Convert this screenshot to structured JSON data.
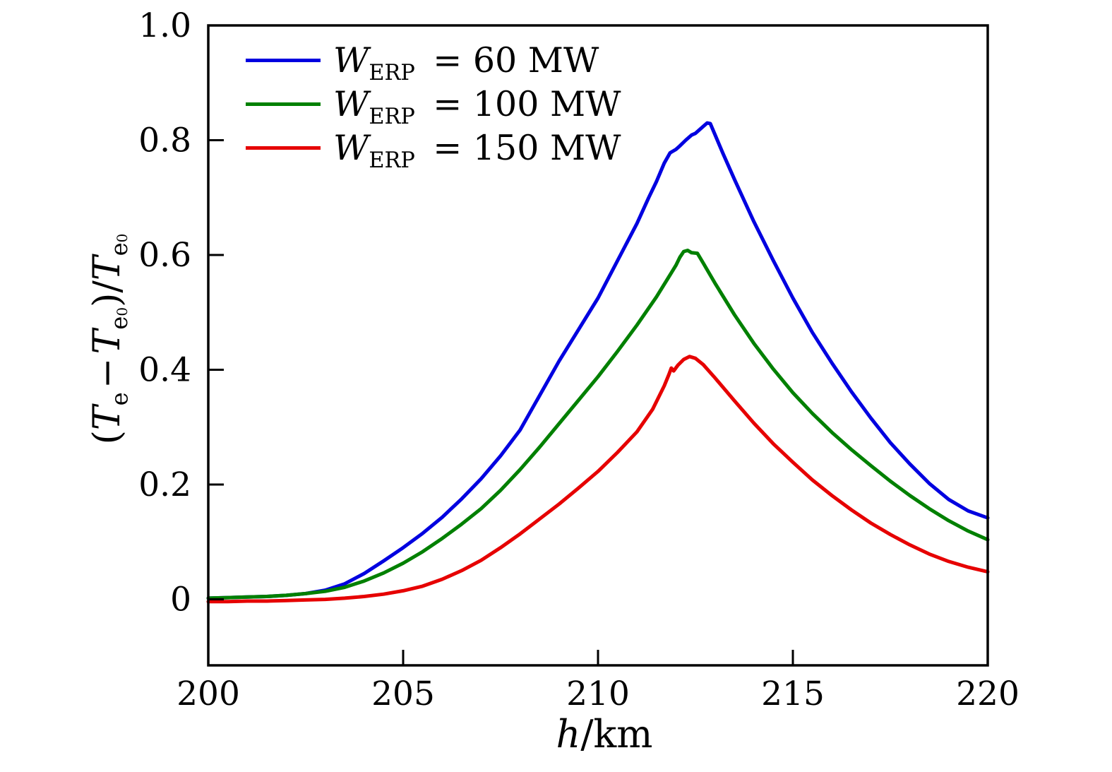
{
  "chart_data": {
    "type": "line",
    "title": "",
    "xlabel": "h/km",
    "ylabel": "(Te − Te0)/Te0",
    "xlim": [
      200,
      220
    ],
    "ylim": [
      -0.115,
      1.0
    ],
    "grid": false,
    "legend_position": "top-left",
    "x_ticks": {
      "values": [
        200,
        205,
        210,
        215,
        220
      ],
      "labels": [
        "200",
        "205",
        "210",
        "215",
        "220"
      ]
    },
    "y_ticks": {
      "values": [
        0,
        0.2,
        0.4,
        0.6,
        0.8,
        1.0
      ],
      "labels": [
        "0",
        "0.2",
        "0.4",
        "0.6",
        "0.8",
        "1.0"
      ]
    },
    "series": [
      {
        "name": "W_ERP = 60 MW",
        "color": "#0000e0",
        "points": [
          [
            200,
            0.002
          ],
          [
            200.5,
            0.003
          ],
          [
            201,
            0.004
          ],
          [
            201.5,
            0.005
          ],
          [
            202,
            0.007
          ],
          [
            202.5,
            0.01
          ],
          [
            203,
            0.016
          ],
          [
            203.5,
            0.027
          ],
          [
            204,
            0.045
          ],
          [
            204.5,
            0.067
          ],
          [
            205,
            0.09
          ],
          [
            205.5,
            0.115
          ],
          [
            206,
            0.143
          ],
          [
            206.5,
            0.175
          ],
          [
            207,
            0.21
          ],
          [
            207.5,
            0.25
          ],
          [
            208,
            0.295
          ],
          [
            208.5,
            0.355
          ],
          [
            209,
            0.415
          ],
          [
            209.5,
            0.47
          ],
          [
            210,
            0.525
          ],
          [
            210.5,
            0.59
          ],
          [
            211,
            0.655
          ],
          [
            211.3,
            0.7
          ],
          [
            211.5,
            0.728
          ],
          [
            211.7,
            0.76
          ],
          [
            211.85,
            0.778
          ],
          [
            212,
            0.784
          ],
          [
            212.1,
            0.79
          ],
          [
            212.25,
            0.8
          ],
          [
            212.4,
            0.809
          ],
          [
            212.5,
            0.812
          ],
          [
            212.6,
            0.818
          ],
          [
            212.7,
            0.824
          ],
          [
            212.8,
            0.83
          ],
          [
            212.88,
            0.829
          ],
          [
            213,
            0.81
          ],
          [
            213.2,
            0.778
          ],
          [
            213.5,
            0.732
          ],
          [
            214,
            0.658
          ],
          [
            214.5,
            0.59
          ],
          [
            215,
            0.525
          ],
          [
            215.5,
            0.465
          ],
          [
            216,
            0.412
          ],
          [
            216.5,
            0.362
          ],
          [
            217,
            0.316
          ],
          [
            217.5,
            0.273
          ],
          [
            218,
            0.236
          ],
          [
            218.5,
            0.202
          ],
          [
            219,
            0.174
          ],
          [
            219.5,
            0.154
          ],
          [
            220,
            0.142
          ]
        ]
      },
      {
        "name": "W_ERP = 100 MW",
        "color": "#008000",
        "points": [
          [
            200,
            0.002
          ],
          [
            200.5,
            0.003
          ],
          [
            201,
            0.004
          ],
          [
            201.5,
            0.005
          ],
          [
            202,
            0.007
          ],
          [
            202.5,
            0.01
          ],
          [
            203,
            0.014
          ],
          [
            203.5,
            0.021
          ],
          [
            204,
            0.032
          ],
          [
            204.5,
            0.046
          ],
          [
            205,
            0.063
          ],
          [
            205.5,
            0.083
          ],
          [
            206,
            0.106
          ],
          [
            206.5,
            0.131
          ],
          [
            207,
            0.158
          ],
          [
            207.5,
            0.19
          ],
          [
            208,
            0.226
          ],
          [
            208.5,
            0.265
          ],
          [
            209,
            0.306
          ],
          [
            209.5,
            0.347
          ],
          [
            210,
            0.388
          ],
          [
            210.5,
            0.432
          ],
          [
            211,
            0.478
          ],
          [
            211.5,
            0.527
          ],
          [
            211.8,
            0.56
          ],
          [
            212,
            0.582
          ],
          [
            212.1,
            0.596
          ],
          [
            212.2,
            0.606
          ],
          [
            212.3,
            0.608
          ],
          [
            212.4,
            0.604
          ],
          [
            212.55,
            0.603
          ],
          [
            212.7,
            0.586
          ],
          [
            213,
            0.551
          ],
          [
            213.5,
            0.496
          ],
          [
            214,
            0.446
          ],
          [
            214.5,
            0.401
          ],
          [
            215,
            0.36
          ],
          [
            215.5,
            0.324
          ],
          [
            216,
            0.291
          ],
          [
            216.5,
            0.261
          ],
          [
            217,
            0.233
          ],
          [
            217.5,
            0.206
          ],
          [
            218,
            0.181
          ],
          [
            218.5,
            0.158
          ],
          [
            219,
            0.137
          ],
          [
            219.5,
            0.119
          ],
          [
            220,
            0.104
          ]
        ]
      },
      {
        "name": "W_ERP = 150 MW",
        "color": "#e60000",
        "points": [
          [
            200,
            -0.004
          ],
          [
            200.5,
            -0.004
          ],
          [
            201,
            -0.003
          ],
          [
            201.5,
            -0.003
          ],
          [
            202,
            -0.002
          ],
          [
            202.5,
            -0.001
          ],
          [
            203,
            0.0
          ],
          [
            203.5,
            0.002
          ],
          [
            204,
            0.005
          ],
          [
            204.5,
            0.009
          ],
          [
            205,
            0.015
          ],
          [
            205.5,
            0.023
          ],
          [
            206,
            0.035
          ],
          [
            206.5,
            0.05
          ],
          [
            207,
            0.068
          ],
          [
            207.5,
            0.09
          ],
          [
            208,
            0.114
          ],
          [
            208.5,
            0.14
          ],
          [
            209,
            0.166
          ],
          [
            209.5,
            0.194
          ],
          [
            210,
            0.223
          ],
          [
            210.5,
            0.256
          ],
          [
            211,
            0.292
          ],
          [
            211.4,
            0.331
          ],
          [
            211.7,
            0.372
          ],
          [
            211.82,
            0.392
          ],
          [
            211.88,
            0.403
          ],
          [
            211.94,
            0.398
          ],
          [
            212.05,
            0.408
          ],
          [
            212.2,
            0.418
          ],
          [
            212.35,
            0.423
          ],
          [
            212.5,
            0.42
          ],
          [
            212.7,
            0.409
          ],
          [
            213,
            0.386
          ],
          [
            213.5,
            0.346
          ],
          [
            214,
            0.307
          ],
          [
            214.5,
            0.271
          ],
          [
            215,
            0.239
          ],
          [
            215.5,
            0.208
          ],
          [
            216,
            0.181
          ],
          [
            216.5,
            0.156
          ],
          [
            217,
            0.133
          ],
          [
            217.5,
            0.113
          ],
          [
            218,
            0.095
          ],
          [
            218.5,
            0.079
          ],
          [
            219,
            0.066
          ],
          [
            219.5,
            0.056
          ],
          [
            220,
            0.048
          ]
        ]
      }
    ],
    "legend": {
      "items": [
        {
          "var": "W",
          "sub": "ERP",
          "rest": "= 60 MW",
          "color": "#0000e0"
        },
        {
          "var": "W",
          "sub": "ERP",
          "rest": "= 100 MW",
          "color": "#008000"
        },
        {
          "var": "W",
          "sub": "ERP",
          "rest": "= 150 MW",
          "color": "#e60000"
        }
      ]
    }
  },
  "labels": {
    "y": {
      "p1": "(",
      "t1": "T",
      "s1": "e",
      "minus": "−",
      "t2": "T",
      "s2": "e",
      "ss2": "0",
      "p3": ")/",
      "t3": "T",
      "s3": "e",
      "ss3": "0"
    },
    "x": {
      "var": "h",
      "rest": "/km"
    }
  }
}
